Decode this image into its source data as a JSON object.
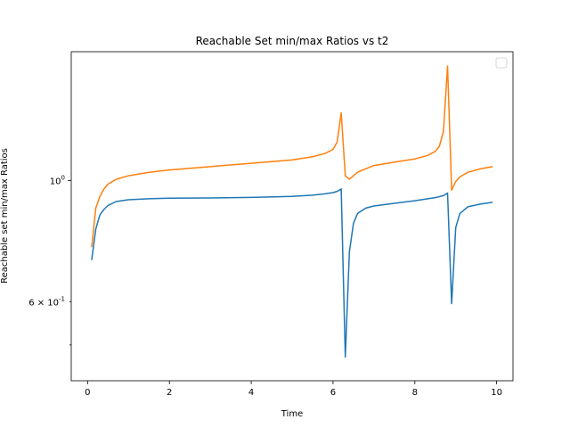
{
  "chart_data": {
    "type": "line",
    "title": "Reachable Set min/max Ratios vs t2",
    "xlabel": "Time",
    "ylabel": "Reachable set min/max Ratios",
    "yscale": "log",
    "xlim": [
      -0.4,
      10.4
    ],
    "ylim": [
      0.43,
      1.72
    ],
    "xticks": [
      0,
      2,
      4,
      6,
      8,
      10
    ],
    "xtick_labels": [
      "0",
      "2",
      "4",
      "6",
      "8",
      "10"
    ],
    "yticks_major": [
      1.0
    ],
    "ytick_major_labels": [
      "10^0"
    ],
    "yticks_minor": [
      0.6
    ],
    "ytick_minor_labels": [
      "6 × 10^-1"
    ],
    "yticks_minor_unlabeled": [
      0.5
    ],
    "legend": "top-right (empty)",
    "grid": false,
    "series": [
      {
        "color": "#1f77b4",
        "x": [
          0.1,
          0.2,
          0.3,
          0.4,
          0.5,
          0.7,
          1.0,
          1.5,
          2.0,
          3.0,
          4.0,
          5.0,
          5.5,
          5.8,
          6.0,
          6.1,
          6.2,
          6.3,
          6.4,
          6.5,
          6.6,
          6.8,
          7.0,
          7.5,
          8.0,
          8.5,
          8.7,
          8.8,
          8.9,
          9.0,
          9.1,
          9.3,
          9.6,
          9.9
        ],
        "values": [
          0.715,
          0.815,
          0.865,
          0.885,
          0.9,
          0.915,
          0.922,
          0.926,
          0.928,
          0.929,
          0.931,
          0.935,
          0.94,
          0.945,
          0.95,
          0.955,
          0.965,
          0.475,
          0.74,
          0.835,
          0.87,
          0.89,
          0.898,
          0.908,
          0.918,
          0.93,
          0.938,
          0.948,
          0.595,
          0.82,
          0.87,
          0.895,
          0.905,
          0.912
        ]
      },
      {
        "color": "#ff7f0e",
        "x": [
          0.1,
          0.2,
          0.3,
          0.4,
          0.5,
          0.7,
          1.0,
          1.5,
          2.0,
          3.0,
          4.0,
          5.0,
          5.5,
          5.8,
          6.0,
          6.1,
          6.2,
          6.3,
          6.4,
          6.5,
          6.6,
          6.8,
          7.0,
          7.5,
          8.0,
          8.3,
          8.5,
          8.6,
          8.7,
          8.8,
          8.9,
          9.0,
          9.1,
          9.3,
          9.6,
          9.9
        ],
        "values": [
          0.755,
          0.89,
          0.935,
          0.965,
          0.985,
          1.005,
          1.02,
          1.035,
          1.045,
          1.06,
          1.075,
          1.09,
          1.105,
          1.12,
          1.14,
          1.175,
          1.33,
          1.02,
          1.005,
          1.02,
          1.035,
          1.05,
          1.065,
          1.08,
          1.095,
          1.11,
          1.13,
          1.155,
          1.23,
          1.62,
          0.96,
          0.995,
          1.015,
          1.035,
          1.05,
          1.06
        ]
      }
    ]
  }
}
